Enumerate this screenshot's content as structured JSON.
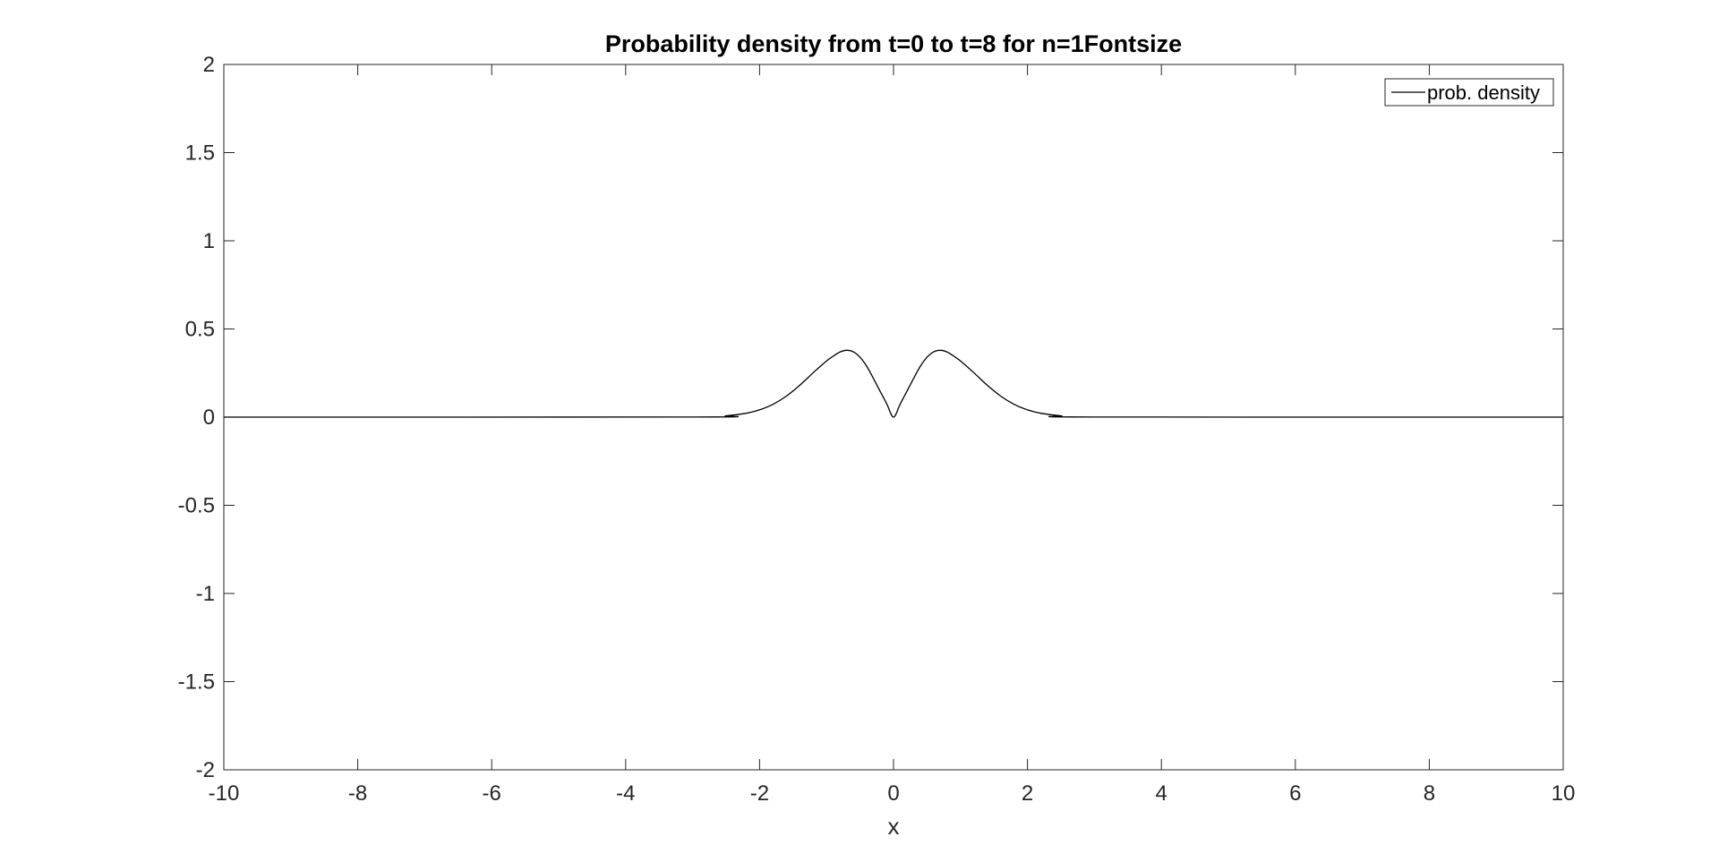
{
  "chart_data": {
    "type": "line",
    "title": "Probability density from t=0 to t=8 for n=1Fontsize",
    "xlabel": "x",
    "ylabel": "",
    "xlim": [
      -10,
      10
    ],
    "ylim": [
      -2,
      2
    ],
    "xticks": [
      -10,
      -8,
      -6,
      -4,
      -2,
      0,
      2,
      4,
      6,
      8,
      10
    ],
    "xtick_labels": [
      "-10",
      "-8",
      "-6",
      "-4",
      "-2",
      "0",
      "2",
      "4",
      "6",
      "8",
      "10"
    ],
    "yticks": [
      -2,
      -1.5,
      -1,
      -0.5,
      0,
      0.5,
      1,
      1.5,
      2
    ],
    "ytick_labels": [
      "-2",
      "-1.5",
      "-1",
      "-0.5",
      "0",
      "0.5",
      "1",
      "1.5",
      "2"
    ],
    "grid": false,
    "legend_position": "top-right",
    "series": [
      {
        "name": "prob. density",
        "color": "#000000",
        "x": [
          -10,
          -3,
          -2.5,
          -2.2,
          -2,
          -1.8,
          -1.6,
          -1.4,
          -1.2,
          -1,
          -0.9,
          -0.8,
          -0.7,
          -0.6,
          -0.5,
          -0.4,
          -0.3,
          -0.2,
          -0.1,
          0,
          0.1,
          0.2,
          0.3,
          0.4,
          0.5,
          0.6,
          0.7,
          0.8,
          0.9,
          1,
          1.2,
          1.4,
          1.6,
          1.8,
          2,
          2.2,
          2.5,
          3,
          10
        ],
        "y": [
          0,
          0.0007,
          0.0076,
          0.0219,
          0.0413,
          0.0728,
          0.1193,
          0.1806,
          0.2515,
          0.3183,
          0.3459,
          0.3694,
          0.3792,
          0.3703,
          0.3396,
          0.288,
          0.2193,
          0.1464,
          0.0746,
          0,
          0.0746,
          0.1464,
          0.2193,
          0.288,
          0.3396,
          0.3703,
          0.3792,
          0.3694,
          0.3459,
          0.3183,
          0.2515,
          0.1806,
          0.1193,
          0.0728,
          0.0413,
          0.0219,
          0.0076,
          0.0007,
          0
        ]
      }
    ]
  }
}
